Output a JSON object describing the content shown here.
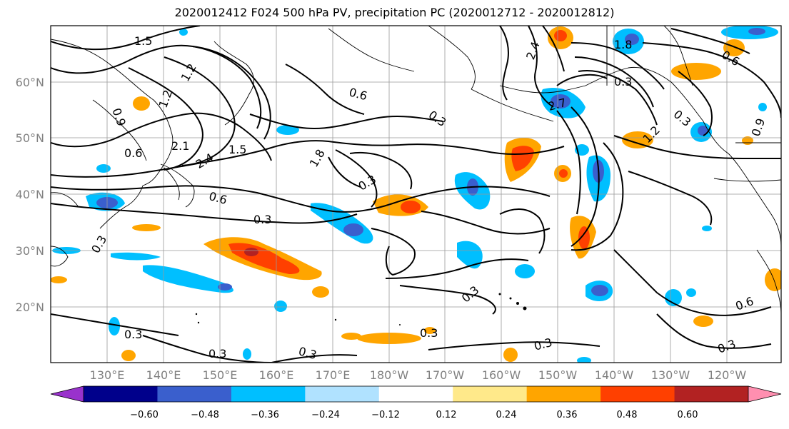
{
  "title": "2020012412 F024 500 hPa PV, precipitation PC (2020012712 - 2020012812)",
  "lat_labels": [
    "60°N",
    "50°N",
    "40°N",
    "30°N",
    "20°N"
  ],
  "lon_labels": [
    "130°E",
    "140°E",
    "150°E",
    "160°E",
    "170°E",
    "180°W",
    "170°W",
    "160°W",
    "150°W",
    "140°W",
    "130°W",
    "120°W"
  ],
  "contour_labels": [
    "1.5",
    "1.2",
    "0.9",
    "0.6",
    "1.2",
    "2.1",
    "2.4",
    "1.5",
    "1.8",
    "0.6",
    "0.3",
    "0.3",
    "0.6",
    "0.3",
    "0.3",
    "0.3",
    "0.3",
    "0.3",
    "0.3",
    "2.4",
    "2.7",
    "1.8",
    "1.2",
    "0.6",
    "0.9",
    "0.3",
    "0.6",
    "0.3",
    "0.3",
    "0.3",
    "0.3"
  ],
  "colorbar": {
    "colors": [
      "#9932cc",
      "#00008b",
      "#3a5fcd",
      "#00bfff",
      "#b0e2ff",
      "#ffffff",
      "#ffe98a",
      "#ffa500",
      "#ff4000",
      "#b22222",
      "#ff8fb0"
    ],
    "ticks": [
      "−0.60",
      "−0.48",
      "−0.36",
      "−0.24",
      "−0.12",
      "0.12",
      "0.24",
      "0.36",
      "0.48",
      "0.60"
    ]
  }
}
